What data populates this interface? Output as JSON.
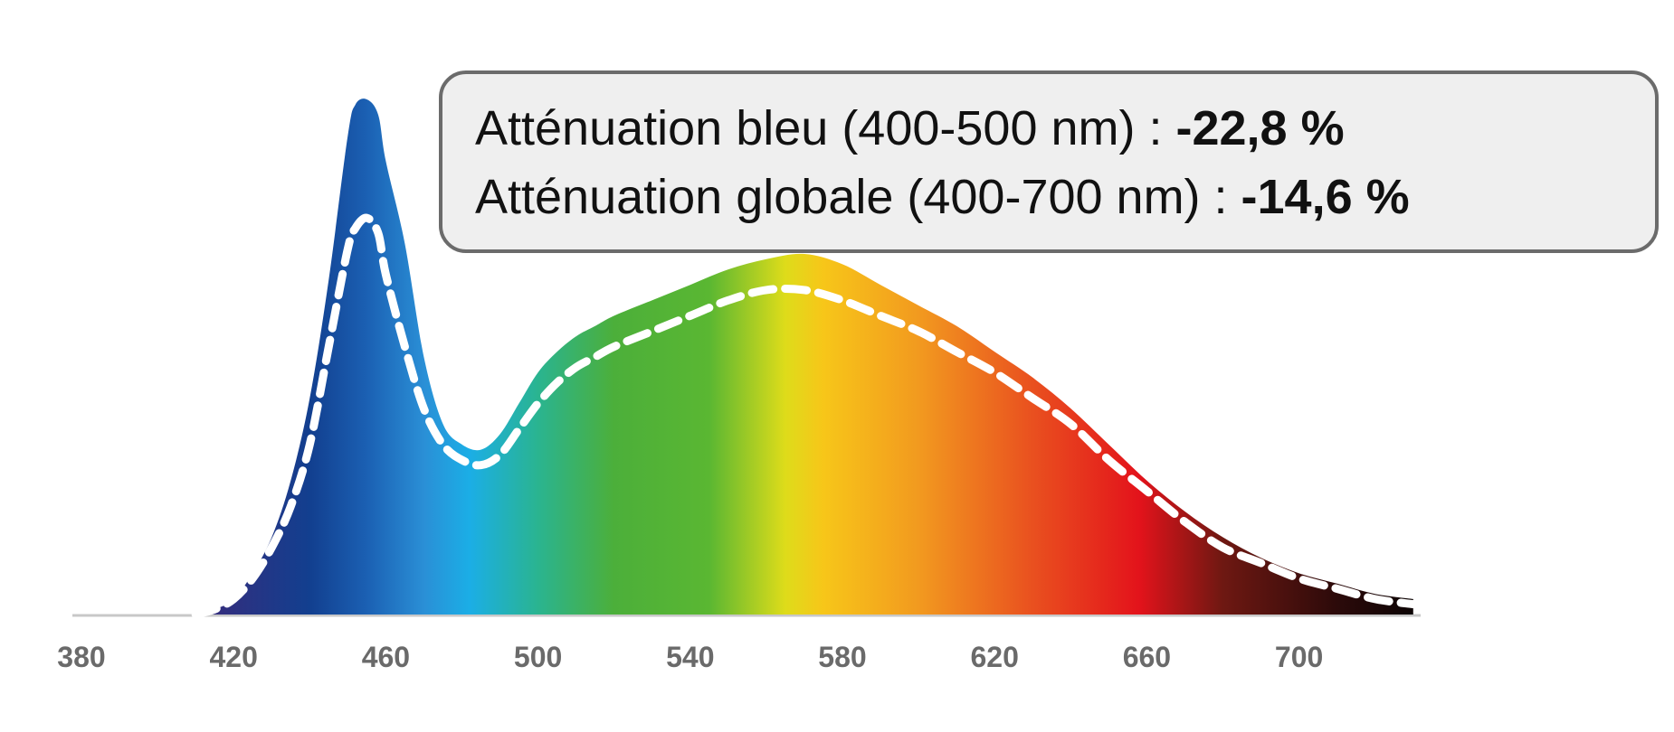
{
  "chart_data": {
    "type": "area",
    "title": "",
    "xlabel": "",
    "ylabel": "",
    "xlim": [
      380,
      735
    ],
    "ylim": [
      0,
      1.0
    ],
    "grid": false,
    "x_ticks": [
      380,
      420,
      460,
      500,
      540,
      580,
      620,
      660,
      700
    ],
    "x": [
      410,
      415,
      420,
      425,
      430,
      435,
      440,
      445,
      450,
      452,
      455,
      458,
      460,
      465,
      470,
      475,
      480,
      485,
      490,
      495,
      500,
      505,
      510,
      515,
      520,
      530,
      540,
      550,
      560,
      570,
      580,
      590,
      600,
      610,
      620,
      630,
      640,
      650,
      660,
      670,
      680,
      690,
      700,
      710,
      720,
      730
    ],
    "series": [
      {
        "values": [
          0.0,
          0.01,
          0.03,
          0.08,
          0.15,
          0.26,
          0.42,
          0.65,
          0.93,
          0.99,
          1.0,
          0.97,
          0.88,
          0.72,
          0.5,
          0.37,
          0.33,
          0.32,
          0.35,
          0.41,
          0.47,
          0.51,
          0.54,
          0.56,
          0.58,
          0.61,
          0.64,
          0.67,
          0.69,
          0.7,
          0.68,
          0.64,
          0.6,
          0.56,
          0.51,
          0.46,
          0.4,
          0.33,
          0.26,
          0.2,
          0.15,
          0.11,
          0.08,
          0.06,
          0.04,
          0.03
        ]
      },
      {
        "values": [
          0.0,
          0.01,
          0.03,
          0.07,
          0.13,
          0.21,
          0.33,
          0.52,
          0.71,
          0.75,
          0.77,
          0.74,
          0.66,
          0.52,
          0.4,
          0.33,
          0.3,
          0.29,
          0.31,
          0.36,
          0.41,
          0.45,
          0.48,
          0.5,
          0.52,
          0.55,
          0.58,
          0.61,
          0.63,
          0.63,
          0.61,
          0.58,
          0.55,
          0.51,
          0.47,
          0.42,
          0.37,
          0.3,
          0.24,
          0.18,
          0.13,
          0.1,
          0.07,
          0.05,
          0.03,
          0.02
        ]
      }
    ],
    "spectrum_colors": [
      {
        "nm": 410,
        "color": "#3a2a7a"
      },
      {
        "nm": 440,
        "color": "#123f8f"
      },
      {
        "nm": 455,
        "color": "#1b60b3"
      },
      {
        "nm": 470,
        "color": "#2a8fd6"
      },
      {
        "nm": 482,
        "color": "#1baee6"
      },
      {
        "nm": 500,
        "color": "#2ab490"
      },
      {
        "nm": 520,
        "color": "#4caf3a"
      },
      {
        "nm": 545,
        "color": "#5ab732"
      },
      {
        "nm": 565,
        "color": "#dedc1a"
      },
      {
        "nm": 575,
        "color": "#f7c619"
      },
      {
        "nm": 600,
        "color": "#f29a1f"
      },
      {
        "nm": 630,
        "color": "#e9501f"
      },
      {
        "nm": 658,
        "color": "#e3131b"
      },
      {
        "nm": 680,
        "color": "#6e1812"
      },
      {
        "nm": 710,
        "color": "#2c0a0a"
      },
      {
        "nm": 735,
        "color": "#050303"
      }
    ],
    "annotations": {
      "line1_label": "Atténuation bleu (400-500 nm) : ",
      "line1_value": "-22,8 %",
      "line2_label": "Atténuation globale (400-700 nm) : ",
      "line2_value": "-14,6 %"
    }
  }
}
